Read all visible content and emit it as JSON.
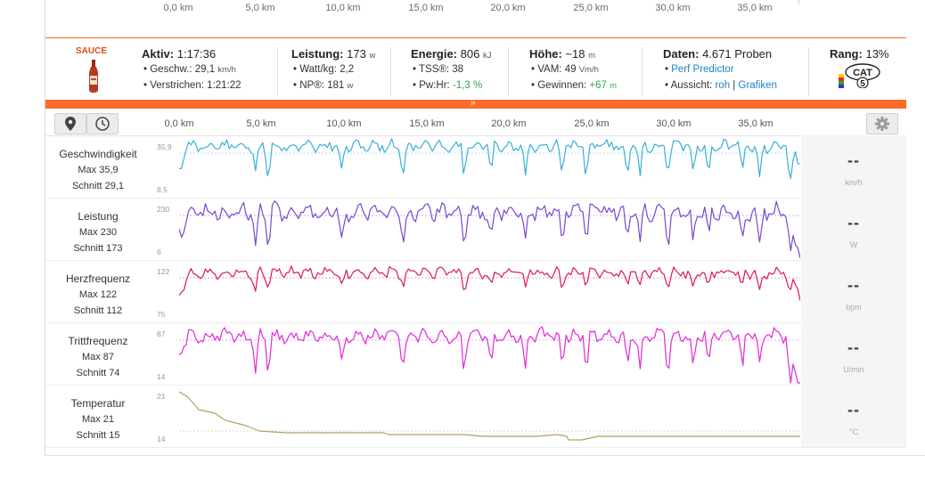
{
  "top_axis": {
    "ticks": [
      "0,0 km",
      "5,0 km",
      "10,0 km",
      "15,0 km",
      "20,0 km",
      "25,0 km",
      "30,0 km",
      "35,0 km"
    ]
  },
  "stats": {
    "brand": "SAUCE",
    "aktiv": {
      "label": "Aktiv:",
      "value": "1:17:36",
      "speed_label": "Geschw.:",
      "speed_value": "29,1",
      "speed_unit": "km/h",
      "elapsed_label": "Verstrichen:",
      "elapsed_value": "1:21:22"
    },
    "leistung": {
      "label": "Leistung:",
      "value": "173",
      "unit": "w",
      "wkg_label": "Watt/kg:",
      "wkg_value": "2,2",
      "np_label": "NP®:",
      "np_value": "181",
      "np_unit": "w"
    },
    "energie": {
      "label": "Energie:",
      "value": "806",
      "unit": "kJ",
      "tss_label": "TSS®:",
      "tss_value": "38",
      "pwhr_label": "Pw:Hr:",
      "pwhr_value": "-1,3 %"
    },
    "hoehe": {
      "label": "Höhe:",
      "value": "~18",
      "unit": "m",
      "vam_label": "VAM:",
      "vam_value": "49",
      "vam_unit": "Vm/h",
      "gain_label": "Gewinnen:",
      "gain_value": "+67",
      "gain_unit": "m"
    },
    "daten": {
      "label": "Daten:",
      "value": "4.671 Proben",
      "perf_link": "Perf Predictor",
      "view_label": "Aussicht:",
      "view_raw": "roh",
      "view_sep": "|",
      "view_graphs": "Grafiken"
    },
    "rang": {
      "label": "Rang:",
      "value": "13%",
      "cat_text": "CAT",
      "cat_num": "5"
    }
  },
  "chart_axis": {
    "ticks": [
      "0,0 km",
      "5,0 km",
      "10,0 km",
      "15,0 km",
      "20,0 km",
      "25,0 km",
      "30,0 km",
      "35,0 km"
    ]
  },
  "rows": [
    {
      "title": "Geschwindigkeit",
      "max_label": "Max 35,9",
      "avg_label": "Schnitt 29,1",
      "axis_max": "35,9",
      "axis_min": "8,5",
      "readout": "--",
      "unit": "km/h",
      "color": "#3aaed8"
    },
    {
      "title": "Leistung",
      "max_label": "Max 230",
      "avg_label": "Schnitt 173",
      "axis_max": "230",
      "axis_min": "6",
      "readout": "--",
      "unit": "W",
      "color": "#7a47cf"
    },
    {
      "title": "Herzfrequenz",
      "max_label": "Max 122",
      "avg_label": "Schnitt 112",
      "axis_max": "122",
      "axis_min": "75",
      "readout": "--",
      "unit": "bpm",
      "color": "#d8195a"
    },
    {
      "title": "Trittfrequenz",
      "max_label": "Max 87",
      "avg_label": "Schnitt 74",
      "axis_max": "87",
      "axis_min": "14",
      "readout": "--",
      "unit": "U/min",
      "color": "#e02ad8"
    },
    {
      "title": "Temperatur",
      "max_label": "Max 21",
      "avg_label": "Schnitt 15",
      "axis_max": "21",
      "axis_min": "14",
      "readout": "--",
      "unit": "°C",
      "color": "#b3a25b"
    }
  ]
}
